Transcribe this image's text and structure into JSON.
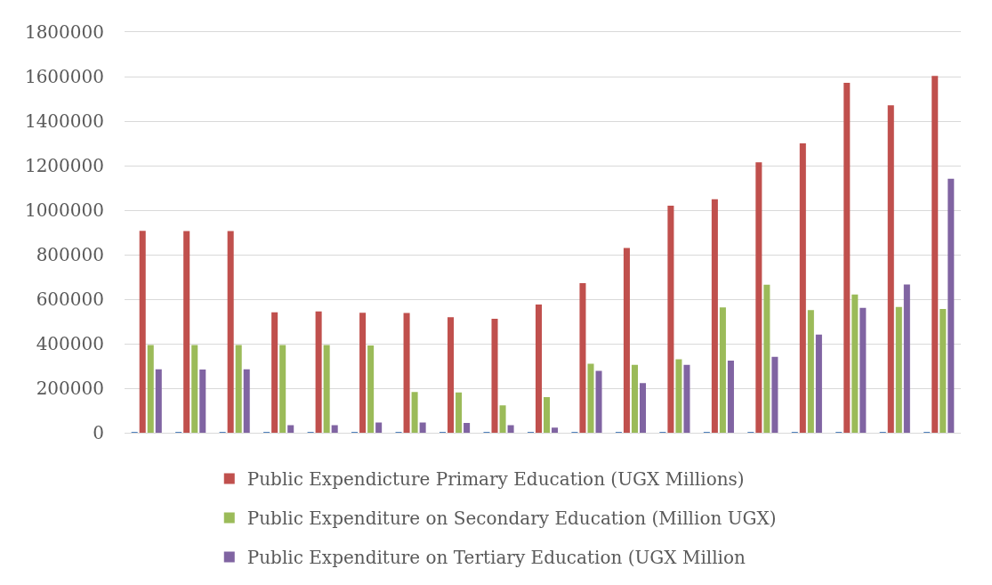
{
  "chart_data": {
    "type": "bar",
    "categories": [
      null,
      null,
      null,
      null,
      null,
      null,
      null,
      null,
      null,
      null,
      null,
      null,
      null,
      null,
      null,
      null,
      null,
      null,
      null
    ],
    "series": [
      {
        "color": "#4f81bd",
        "values": [
          3000,
          3000,
          3000,
          3000,
          3000,
          3000,
          3000,
          3000,
          3000,
          3000,
          3000,
          3000,
          3000,
          3000,
          3000,
          3000,
          3000,
          3000,
          3000
        ]
      },
      {
        "name": "Public Expendicture Primary Education (UGX Millions)",
        "color": "#c0504d",
        "values": [
          907000,
          906000,
          906000,
          541000,
          545000,
          539000,
          538000,
          519000,
          512000,
          576000,
          672000,
          830000,
          1020000,
          1049000,
          1215000,
          1300000,
          1572000,
          1471000,
          1603000
        ]
      },
      {
        "name": "Public Expenditure on Secondary Education (Million UGX)",
        "color": "#9bbb59",
        "values": [
          394000,
          394000,
          394000,
          394000,
          394000,
          392000,
          183000,
          181000,
          123000,
          160000,
          310000,
          305000,
          330000,
          563000,
          665000,
          551000,
          621000,
          565000,
          556000
        ]
      },
      {
        "name": "Public Expenditure on Tertiary Education (UGX Million",
        "color": "#8064a2",
        "values": [
          285000,
          284000,
          285000,
          34000,
          34000,
          46000,
          46000,
          44000,
          34000,
          23000,
          278000,
          223000,
          305000,
          324000,
          341000,
          441000,
          561000,
          666000,
          1141000
        ]
      }
    ],
    "ylim": [
      0,
      1800000
    ],
    "yticks": [
      0,
      200000,
      400000,
      600000,
      800000,
      1000000,
      1200000,
      1400000,
      1600000,
      1800000
    ],
    "grid": "y",
    "legend": "bottom"
  }
}
